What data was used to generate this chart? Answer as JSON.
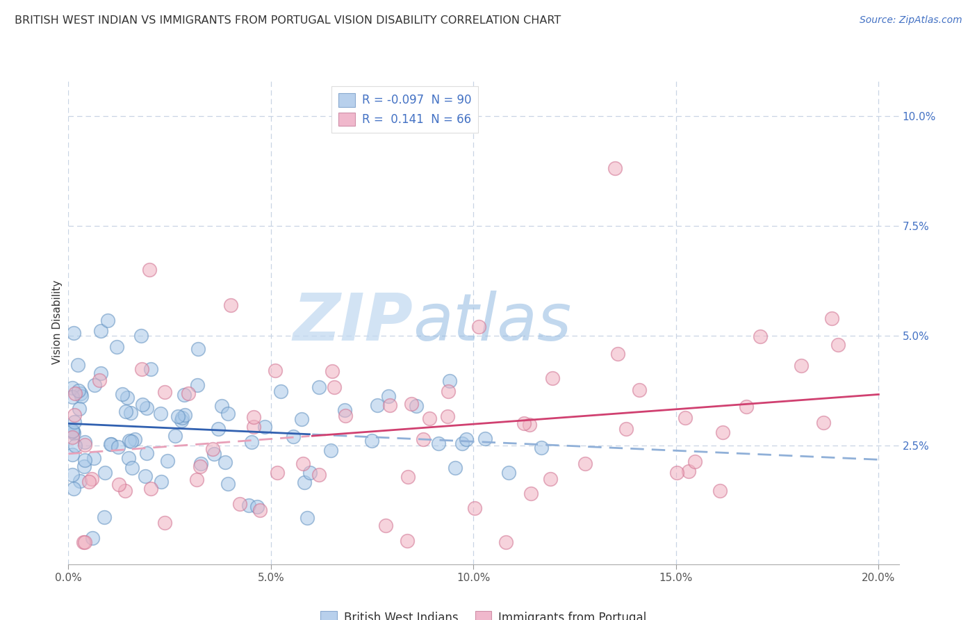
{
  "title": "BRITISH WEST INDIAN VS IMMIGRANTS FROM PORTUGAL VISION DISABILITY CORRELATION CHART",
  "source": "Source: ZipAtlas.com",
  "xlabel_tick_vals": [
    0.0,
    0.05,
    0.1,
    0.15,
    0.2
  ],
  "ylabel": "Vision Disability",
  "ylabel_tick_vals": [
    0.025,
    0.05,
    0.075,
    0.1
  ],
  "xlim": [
    0.0,
    0.205
  ],
  "ylim": [
    -0.002,
    0.108
  ],
  "legend_labels": [
    "British West Indians",
    "Immigrants from Portugal"
  ],
  "watermark_zip": "ZIP",
  "watermark_atlas": "atlas",
  "blue_scatter_color": "#a8c8e8",
  "blue_edge_color": "#6090c0",
  "pink_scatter_color": "#f0b0c0",
  "pink_edge_color": "#d07090",
  "blue_line_color": "#3060b0",
  "pink_line_color": "#d04070",
  "blue_dash_color": "#90b0d8",
  "pink_dash_color": "#e8a0b8",
  "grid_color": "#c8d4e4",
  "title_fontsize": 11.5,
  "axis_label_fontsize": 11,
  "tick_fontsize": 11,
  "source_fontsize": 10,
  "blue_R": -0.097,
  "blue_N": 90,
  "pink_R": 0.141,
  "pink_N": 66,
  "legend_entry_1": "R = -0.097  N = 90",
  "legend_entry_2": "R =  0.141  N = 66"
}
